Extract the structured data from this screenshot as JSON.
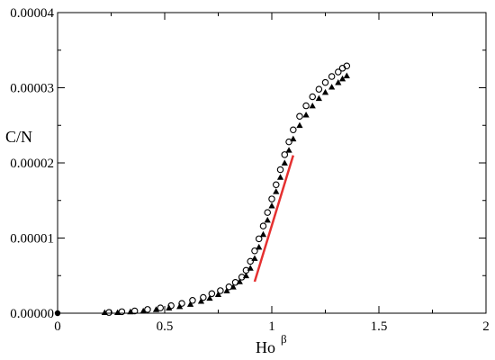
{
  "chart_data": {
    "type": "scatter",
    "title": "",
    "xlabel": "Ho",
    "xlabel_superscript": "β",
    "ylabel": "C/N",
    "xlim": [
      0,
      2
    ],
    "ylim": [
      0,
      4e-05
    ],
    "x_ticks": [
      0,
      0.5,
      1,
      1.5,
      2
    ],
    "x_tick_labels": [
      "0",
      "0.5",
      "1",
      "1.5",
      "2"
    ],
    "y_ticks": [
      0,
      1e-05,
      2e-05,
      3e-05,
      4e-05
    ],
    "y_tick_labels": [
      "0.00000",
      "0.00001",
      "0.00002",
      "0.00003",
      "0.00004"
    ],
    "grid": false,
    "legend": "none",
    "colors": {
      "markers": "#000000",
      "fit_line": "#e53030"
    },
    "series": [
      {
        "marker": "open-circle",
        "x": [
          0.24,
          0.3,
          0.36,
          0.42,
          0.48,
          0.53,
          0.58,
          0.63,
          0.68,
          0.72,
          0.76,
          0.8,
          0.83,
          0.86,
          0.88,
          0.9,
          0.92,
          0.94,
          0.96,
          0.98,
          1.0,
          1.02,
          1.04,
          1.06,
          1.08,
          1.1,
          1.13,
          1.16,
          1.19,
          1.22,
          1.25,
          1.28,
          1.31,
          1.33,
          1.35
        ],
        "y": [
          1e-07,
          2e-07,
          3e-07,
          5e-07,
          7e-07,
          1e-06,
          1.3e-06,
          1.7e-06,
          2.1e-06,
          2.6e-06,
          3e-06,
          3.5e-06,
          4.1e-06,
          4.8e-06,
          5.7e-06,
          6.9e-06,
          8.3e-06,
          9.9e-06,
          1.16e-05,
          1.34e-05,
          1.52e-05,
          1.71e-05,
          1.91e-05,
          2.11e-05,
          2.28e-05,
          2.44e-05,
          2.62e-05,
          2.76e-05,
          2.88e-05,
          2.98e-05,
          3.07e-05,
          3.15e-05,
          3.21e-05,
          3.26e-05,
          3.29e-05
        ]
      },
      {
        "marker": "filled-triangle",
        "x": [
          0.22,
          0.28,
          0.34,
          0.4,
          0.46,
          0.52,
          0.57,
          0.62,
          0.67,
          0.71,
          0.75,
          0.79,
          0.82,
          0.85,
          0.88,
          0.9,
          0.92,
          0.94,
          0.96,
          0.98,
          1.0,
          1.02,
          1.04,
          1.06,
          1.08,
          1.1,
          1.13,
          1.16,
          1.19,
          1.22,
          1.25,
          1.28,
          1.31,
          1.33,
          1.35
        ],
        "y": [
          1e-07,
          1e-07,
          2e-07,
          3e-07,
          5e-07,
          7e-07,
          9e-07,
          1.2e-06,
          1.6e-06,
          2e-06,
          2.5e-06,
          3e-06,
          3.5e-06,
          4.2e-06,
          5e-06,
          6e-06,
          7.3e-06,
          8.8e-06,
          1.05e-05,
          1.24e-05,
          1.43e-05,
          1.62e-05,
          1.81e-05,
          2e-05,
          2.17e-05,
          2.32e-05,
          2.5e-05,
          2.64e-05,
          2.76e-05,
          2.86e-05,
          2.94e-05,
          3.01e-05,
          3.07e-05,
          3.12e-05,
          3.16e-05
        ]
      }
    ],
    "fit_line": {
      "x": [
        0.92,
        1.1
      ],
      "y": [
        4.2e-06,
        2.1e-05
      ]
    }
  }
}
